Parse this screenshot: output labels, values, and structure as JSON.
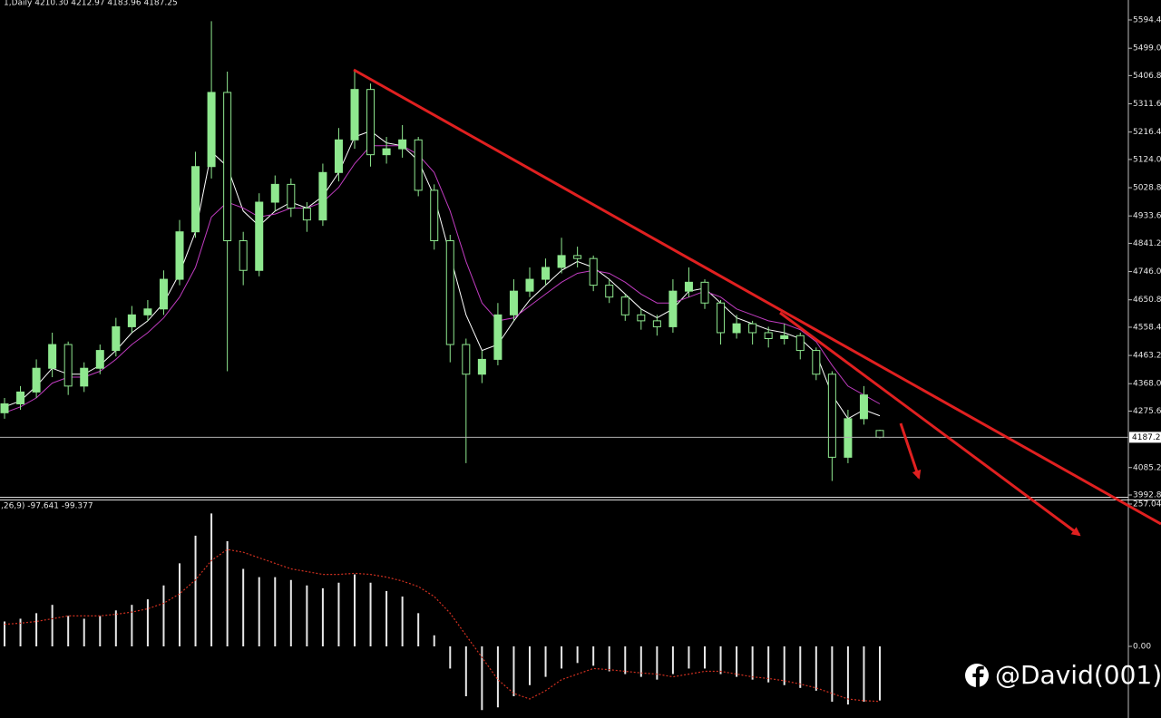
{
  "chart_data": [
    {
      "type": "candlestick",
      "title": "1,Daily  4210.30 4212.97 4183.96 4187.25",
      "open": [
        4270,
        4300,
        4340,
        4420,
        4500,
        4360,
        4420,
        4480,
        4560,
        4600,
        4620,
        4720,
        4880,
        5100,
        5350,
        4850,
        4750,
        4980,
        5040,
        4960,
        4920,
        5080,
        5190,
        5360,
        5140,
        5160,
        5190,
        5020,
        4850,
        4500,
        4400,
        4450,
        4600,
        4680,
        4720,
        4760,
        4800,
        4790,
        4700,
        4660,
        4600,
        4580,
        4560,
        4680,
        4710,
        4640,
        4540,
        4570,
        4540,
        4520,
        4530,
        4480,
        4400,
        4120,
        4250,
        4210.3
      ],
      "high": [
        4320,
        4360,
        4450,
        4540,
        4510,
        4440,
        4500,
        4590,
        4630,
        4650,
        4750,
        4920,
        5150,
        5590,
        5420,
        4880,
        5010,
        5070,
        5060,
        4980,
        5110,
        5230,
        5420,
        5380,
        5200,
        5240,
        5200,
        5040,
        4870,
        4520,
        4480,
        4640,
        4720,
        4760,
        4790,
        4860,
        4830,
        4800,
        4720,
        4670,
        4620,
        4600,
        4720,
        4760,
        4720,
        4650,
        4600,
        4580,
        4560,
        4570,
        4540,
        4490,
        4410,
        4280,
        4360,
        4212.97
      ],
      "low": [
        4250,
        4280,
        4320,
        4390,
        4330,
        4340,
        4400,
        4460,
        4540,
        4580,
        4600,
        4700,
        4860,
        5060,
        4410,
        4700,
        4730,
        4950,
        4930,
        4880,
        4900,
        5050,
        5160,
        5100,
        5110,
        5130,
        5000,
        4820,
        4440,
        4100,
        4370,
        4430,
        4580,
        4660,
        4700,
        4740,
        4760,
        4680,
        4640,
        4580,
        4550,
        4530,
        4540,
        4660,
        4620,
        4500,
        4520,
        4500,
        4490,
        4500,
        4450,
        4380,
        4040,
        4100,
        4230,
        4183.96
      ],
      "close": [
        4300,
        4340,
        4420,
        4500,
        4360,
        4420,
        4480,
        4560,
        4600,
        4620,
        4720,
        4880,
        5100,
        5350,
        4850,
        4750,
        4980,
        5040,
        4960,
        4920,
        5080,
        5190,
        5360,
        5140,
        5160,
        5190,
        5020,
        4850,
        4500,
        4400,
        4450,
        4600,
        4680,
        4720,
        4760,
        4800,
        4790,
        4700,
        4660,
        4600,
        4580,
        4560,
        4680,
        4710,
        4640,
        4540,
        4570,
        4540,
        4520,
        4530,
        4480,
        4400,
        4120,
        4250,
        4330,
        4187.25
      ],
      "color_up": "#8fe88f",
      "color_down": "#000000",
      "wick_color": "#8fe88f",
      "overlays": [
        {
          "color": "#ffffff",
          "values": [
            4290,
            4310,
            4360,
            4420,
            4400,
            4400,
            4430,
            4480,
            4540,
            4580,
            4640,
            4740,
            4880,
            5150,
            5100,
            4950,
            4900,
            4950,
            4980,
            4960,
            5000,
            5080,
            5200,
            5220,
            5180,
            5170,
            5120,
            5000,
            4800,
            4600,
            4480,
            4500,
            4580,
            4650,
            4700,
            4750,
            4780,
            4760,
            4720,
            4670,
            4620,
            4590,
            4620,
            4680,
            4690,
            4640,
            4590,
            4570,
            4550,
            4540,
            4520,
            4470,
            4330,
            4250,
            4280,
            4260
          ]
        },
        {
          "color": "#c03cc0",
          "values": [
            4270,
            4290,
            4320,
            4370,
            4390,
            4390,
            4410,
            4450,
            4500,
            4540,
            4590,
            4660,
            4760,
            4930,
            4980,
            4960,
            4930,
            4940,
            4960,
            4960,
            4980,
            5030,
            5110,
            5170,
            5170,
            5170,
            5140,
            5080,
            4950,
            4780,
            4640,
            4580,
            4590,
            4630,
            4670,
            4710,
            4740,
            4750,
            4740,
            4710,
            4670,
            4640,
            4640,
            4660,
            4680,
            4660,
            4620,
            4600,
            4580,
            4570,
            4550,
            4510,
            4430,
            4360,
            4330,
            4300
          ]
        }
      ],
      "ylim": [
        3983.6,
        5661.6
      ],
      "yticks": [
        {
          "value": 5594.4,
          "label": "5594.40"
        },
        {
          "value": 5499,
          "label": "5499.00"
        },
        {
          "value": 5406.8,
          "label": "5406.80"
        },
        {
          "value": 5311.6,
          "label": "5311.60"
        },
        {
          "value": 5216.4,
          "label": "5216.40"
        },
        {
          "value": 5124,
          "label": "5124.00"
        },
        {
          "value": 5028.8,
          "label": "5028.80"
        },
        {
          "value": 4933.6,
          "label": "4933.60"
        },
        {
          "value": 4841.2,
          "label": "4841.20"
        },
        {
          "value": 4746,
          "label": "4746.00"
        },
        {
          "value": 4650.8,
          "label": "4650.80"
        },
        {
          "value": 4558.4,
          "label": "4558.40"
        },
        {
          "value": 4463.2,
          "label": "4463.20"
        },
        {
          "value": 4368,
          "label": "4368.00"
        },
        {
          "value": 4275.6,
          "label": "4275.60"
        },
        {
          "value": 4085.2,
          "label": "4085.20"
        },
        {
          "value": 3992.8,
          "label": "3992.80"
        }
      ],
      "price_line": {
        "value": 4187.25,
        "label": "4187.25"
      }
    },
    {
      "type": "macd",
      "title": ",26,9) -97.641 -99.377",
      "histogram": [
        45,
        50,
        60,
        75,
        55,
        50,
        55,
        65,
        75,
        85,
        110,
        150,
        200,
        240,
        190,
        140,
        125,
        125,
        120,
        110,
        105,
        115,
        130,
        115,
        100,
        90,
        60,
        20,
        -40,
        -90,
        -115,
        -110,
        -90,
        -70,
        -55,
        -40,
        -30,
        -35,
        -45,
        -50,
        -55,
        -60,
        -50,
        -40,
        -40,
        -50,
        -55,
        -60,
        -65,
        -70,
        -75,
        -80,
        -100,
        -105,
        -100,
        -97.641
      ],
      "signal": [
        40,
        42,
        45,
        50,
        55,
        55,
        55,
        58,
        62,
        68,
        78,
        95,
        120,
        155,
        175,
        170,
        160,
        150,
        140,
        135,
        130,
        130,
        132,
        130,
        125,
        118,
        108,
        90,
        60,
        20,
        -20,
        -60,
        -85,
        -95,
        -80,
        -60,
        -50,
        -40,
        -42,
        -45,
        -48,
        -50,
        -55,
        -50,
        -45,
        -45,
        -50,
        -55,
        -58,
        -62,
        -68,
        -75,
        -85,
        -95,
        -98,
        -99.377
      ],
      "histogram_color": "#e8e8e8",
      "signal_color": "#d03020",
      "ylim": [
        -129.3,
        265.2
      ],
      "yticks": [
        {
          "value": 257.044,
          "label": "257.044"
        },
        {
          "value": 0,
          "label": "0.00"
        }
      ]
    }
  ],
  "watermark": "@David(001)"
}
